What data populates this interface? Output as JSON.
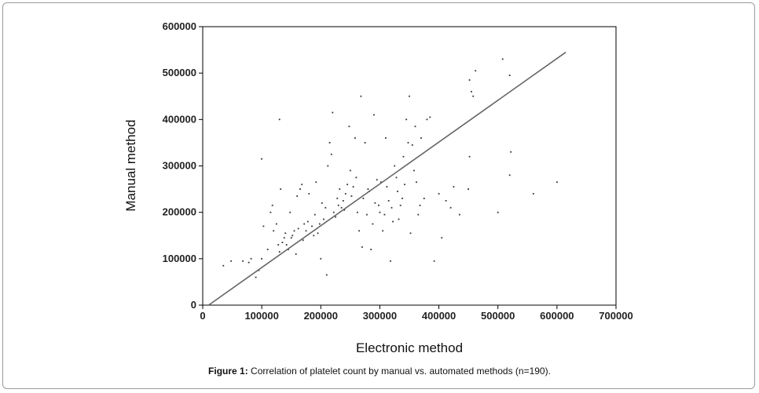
{
  "caption": {
    "label": "Figure 1:",
    "text": " Correlation of platelet count by manual vs. automated methods (n=190)."
  },
  "chart_data": {
    "type": "scatter",
    "title": "",
    "xlabel": "Electronic method",
    "ylabel": "Manual method",
    "xlim": [
      0,
      700000
    ],
    "ylim": [
      0,
      600000
    ],
    "x_ticks": [
      0,
      100000,
      200000,
      300000,
      400000,
      500000,
      600000,
      700000
    ],
    "y_ticks": [
      0,
      100000,
      200000,
      300000,
      400000,
      500000,
      600000
    ],
    "x_tick_labels": [
      "0",
      "100000",
      "200000",
      "300000",
      "400000",
      "500000",
      "600000",
      "700000"
    ],
    "y_tick_labels": [
      "0",
      "100000",
      "200000",
      "300000",
      "400000",
      "500000",
      "600000"
    ],
    "grid": false,
    "points": [
      [
        35000,
        85000
      ],
      [
        48000,
        95000
      ],
      [
        68000,
        95000
      ],
      [
        78000,
        92000
      ],
      [
        82000,
        100000
      ],
      [
        90000,
        60000
      ],
      [
        95000,
        75000
      ],
      [
        100000,
        100000
      ],
      [
        103000,
        170000
      ],
      [
        100000,
        315000
      ],
      [
        110000,
        120000
      ],
      [
        115000,
        200000
      ],
      [
        118000,
        215000
      ],
      [
        120000,
        160000
      ],
      [
        125000,
        175000
      ],
      [
        128000,
        130000
      ],
      [
        130000,
        115000
      ],
      [
        132000,
        250000
      ],
      [
        130000,
        400000
      ],
      [
        135000,
        135000
      ],
      [
        138000,
        145000
      ],
      [
        140000,
        155000
      ],
      [
        142000,
        130000
      ],
      [
        145000,
        120000
      ],
      [
        148000,
        200000
      ],
      [
        150000,
        145000
      ],
      [
        152000,
        150000
      ],
      [
        155000,
        160000
      ],
      [
        158000,
        110000
      ],
      [
        160000,
        235000
      ],
      [
        162000,
        165000
      ],
      [
        165000,
        250000
      ],
      [
        168000,
        260000
      ],
      [
        170000,
        140000
      ],
      [
        172000,
        175000
      ],
      [
        175000,
        160000
      ],
      [
        178000,
        180000
      ],
      [
        180000,
        240000
      ],
      [
        185000,
        170000
      ],
      [
        188000,
        150000
      ],
      [
        190000,
        195000
      ],
      [
        192000,
        265000
      ],
      [
        195000,
        155000
      ],
      [
        198000,
        175000
      ],
      [
        200000,
        100000
      ],
      [
        202000,
        220000
      ],
      [
        205000,
        185000
      ],
      [
        208000,
        210000
      ],
      [
        210000,
        65000
      ],
      [
        212000,
        300000
      ],
      [
        215000,
        350000
      ],
      [
        218000,
        325000
      ],
      [
        220000,
        415000
      ],
      [
        222000,
        200000
      ],
      [
        225000,
        190000
      ],
      [
        228000,
        230000
      ],
      [
        230000,
        215000
      ],
      [
        232000,
        250000
      ],
      [
        235000,
        210000
      ],
      [
        238000,
        225000
      ],
      [
        240000,
        205000
      ],
      [
        242000,
        240000
      ],
      [
        245000,
        260000
      ],
      [
        248000,
        385000
      ],
      [
        250000,
        290000
      ],
      [
        252000,
        235000
      ],
      [
        255000,
        255000
      ],
      [
        258000,
        360000
      ],
      [
        260000,
        275000
      ],
      [
        262000,
        200000
      ],
      [
        265000,
        160000
      ],
      [
        268000,
        450000
      ],
      [
        270000,
        125000
      ],
      [
        272000,
        230000
      ],
      [
        275000,
        350000
      ],
      [
        278000,
        195000
      ],
      [
        280000,
        250000
      ],
      [
        282000,
        245000
      ],
      [
        285000,
        120000
      ],
      [
        288000,
        175000
      ],
      [
        290000,
        410000
      ],
      [
        292000,
        220000
      ],
      [
        295000,
        270000
      ],
      [
        298000,
        215000
      ],
      [
        300000,
        200000
      ],
      [
        302000,
        265000
      ],
      [
        305000,
        160000
      ],
      [
        308000,
        195000
      ],
      [
        310000,
        360000
      ],
      [
        312000,
        255000
      ],
      [
        315000,
        225000
      ],
      [
        318000,
        95000
      ],
      [
        320000,
        210000
      ],
      [
        322000,
        180000
      ],
      [
        325000,
        300000
      ],
      [
        328000,
        275000
      ],
      [
        330000,
        245000
      ],
      [
        332000,
        185000
      ],
      [
        335000,
        215000
      ],
      [
        338000,
        230000
      ],
      [
        340000,
        320000
      ],
      [
        342000,
        260000
      ],
      [
        345000,
        400000
      ],
      [
        348000,
        350000
      ],
      [
        350000,
        450000
      ],
      [
        352000,
        155000
      ],
      [
        355000,
        345000
      ],
      [
        358000,
        290000
      ],
      [
        360000,
        385000
      ],
      [
        362000,
        265000
      ],
      [
        365000,
        195000
      ],
      [
        368000,
        215000
      ],
      [
        370000,
        360000
      ],
      [
        375000,
        230000
      ],
      [
        380000,
        400000
      ],
      [
        385000,
        405000
      ],
      [
        392000,
        95000
      ],
      [
        400000,
        240000
      ],
      [
        405000,
        145000
      ],
      [
        412000,
        225000
      ],
      [
        420000,
        210000
      ],
      [
        425000,
        255000
      ],
      [
        435000,
        195000
      ],
      [
        450000,
        250000
      ],
      [
        452000,
        320000
      ],
      [
        455000,
        460000
      ],
      [
        458000,
        450000
      ],
      [
        462000,
        505000
      ],
      [
        452000,
        485000
      ],
      [
        500000,
        200000
      ],
      [
        508000,
        530000
      ],
      [
        520000,
        495000
      ],
      [
        522000,
        330000
      ],
      [
        520000,
        280000
      ],
      [
        560000,
        240000
      ],
      [
        600000,
        265000
      ]
    ],
    "regression_line": [
      [
        10000,
        0
      ],
      [
        615000,
        545000
      ]
    ]
  }
}
